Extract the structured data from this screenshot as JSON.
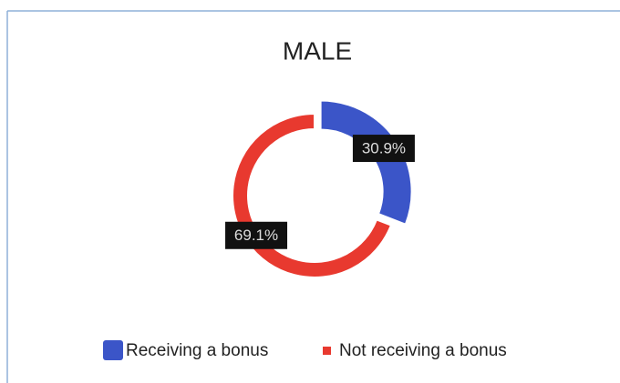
{
  "chart_data": {
    "type": "donut",
    "title": "MALE",
    "categories": [
      "Receiving a bonus",
      "Not receiving a bonus"
    ],
    "values": [
      30.9,
      69.1
    ],
    "value_labels": [
      "30.9%",
      "69.1%"
    ],
    "colors": [
      "#3b55c8",
      "#e8392f"
    ],
    "legend": "bottom"
  }
}
